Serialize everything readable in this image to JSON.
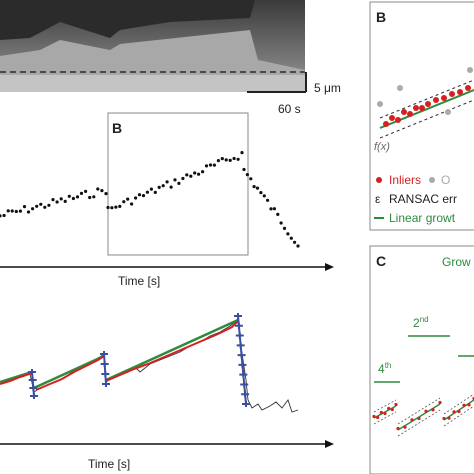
{
  "kymograph": {
    "scale_length": "5 μm",
    "scale_time": "60 s"
  },
  "panel_b_inset": {
    "label": "B"
  },
  "top_plot": {
    "xlabel": "Time [s]"
  },
  "bottom_plot": {
    "xlabel": "Time [s]"
  },
  "right_panel_b": {
    "label": "B",
    "fx_label": "f(x)",
    "legend": [
      {
        "marker": "•",
        "text": "Inliers",
        "color": "#d62020"
      },
      {
        "marker": "•",
        "text": "O",
        "color": "#aaaaaa"
      },
      {
        "marker": "ε",
        "text": "RANSAC err",
        "color": "#222222"
      },
      {
        "marker": "—",
        "text": "Linear growt",
        "color": "#2e8b3e"
      }
    ]
  },
  "right_panel_c": {
    "label": "C",
    "title": "Grow",
    "phase_2": "2",
    "phase_2_sup": "nd",
    "phase_4": "4",
    "phase_4_sup": "th"
  },
  "colors": {
    "inliers": "#d62020",
    "outliers": "#aaaaaa",
    "growth": "#2e8b3e",
    "shrink": "#3a4fa0"
  }
}
